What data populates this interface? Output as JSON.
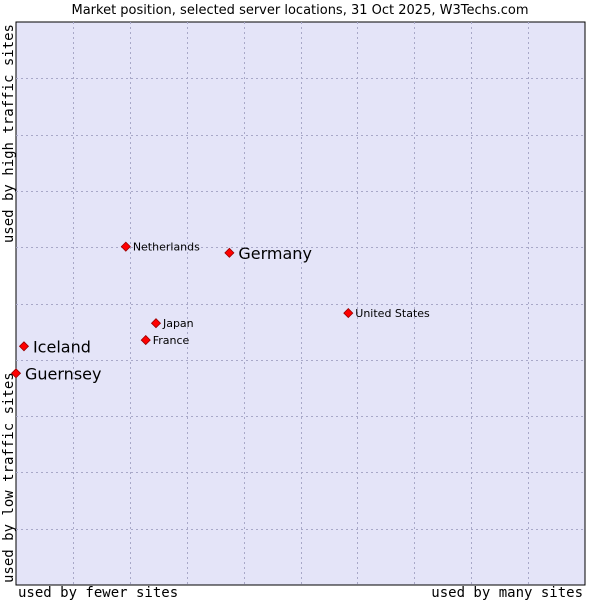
{
  "chart_data": {
    "type": "scatter",
    "title": "Market position, selected server locations, 31 Oct 2025, W3Techs.com",
    "xlabel_left": "used by fewer sites",
    "xlabel_right": "used by many sites",
    "ylabel_bottom": "used by low traffic sites",
    "ylabel_top": "used by high traffic sites",
    "xlim": [
      0,
      100
    ],
    "ylim": [
      0,
      100
    ],
    "grid": true,
    "colors": {
      "background": "#e4e4f8",
      "grid": "#a8a8c8",
      "point": "#ff0000",
      "point_edge": "#990000"
    },
    "points": [
      {
        "name": "Netherlands",
        "x": 19.3,
        "y": 60.1,
        "emphasis": false
      },
      {
        "name": "Germany",
        "x": 37.5,
        "y": 59.0,
        "emphasis": true
      },
      {
        "name": "United States",
        "x": 58.4,
        "y": 48.3,
        "emphasis": false
      },
      {
        "name": "Japan",
        "x": 24.6,
        "y": 46.5,
        "emphasis": false
      },
      {
        "name": "France",
        "x": 22.8,
        "y": 43.5,
        "emphasis": false
      },
      {
        "name": "Iceland",
        "x": 1.4,
        "y": 42.4,
        "emphasis": true
      },
      {
        "name": "Guernsey",
        "x": 0.0,
        "y": 37.6,
        "emphasis": true
      }
    ]
  }
}
